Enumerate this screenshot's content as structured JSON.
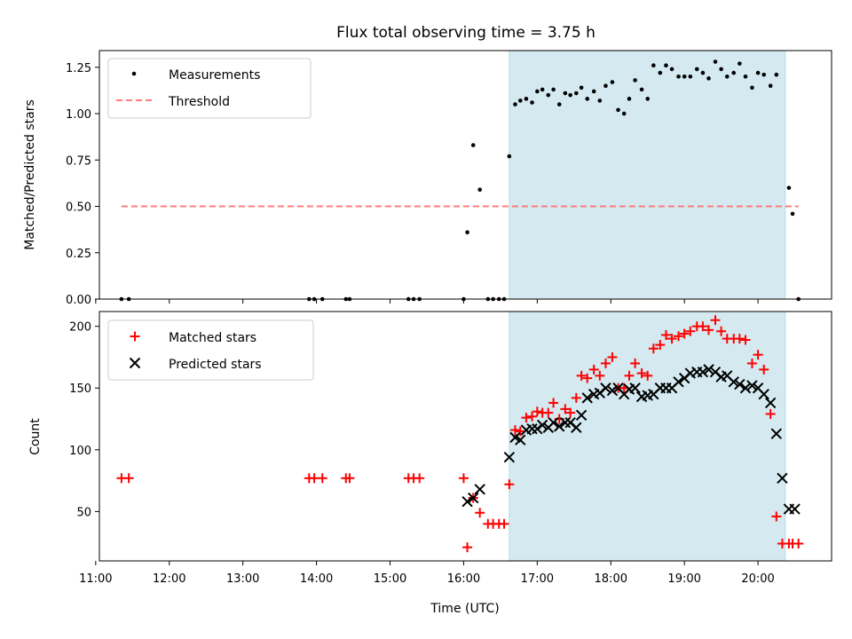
{
  "colors": {
    "observing_span": "#d4eaf0",
    "observing_span_edge": "#b9dbe4",
    "measurements": "#000000",
    "threshold": "#ff7b7b",
    "matched": "#ff0000",
    "predicted": "#000000"
  },
  "chart_data": [
    {
      "type": "scatter",
      "title": "Flux total observing time = 3.75 h",
      "xlabel": "",
      "ylabel": "Matched/Predicted stars",
      "xlim": [
        11.05,
        21.0
      ],
      "ylim": [
        0.0,
        1.34
      ],
      "yticks": [
        0.0,
        0.25,
        0.5,
        0.75,
        1.0,
        1.25
      ],
      "ytick_labels": [
        "0.00",
        "0.25",
        "0.50",
        "0.75",
        "1.00",
        "1.25"
      ],
      "xticks": [
        11,
        12,
        13,
        14,
        15,
        16,
        17,
        18,
        19,
        20
      ],
      "observing_span": [
        16.62,
        20.37
      ],
      "legend": [
        "Measurements",
        "Threshold"
      ],
      "legend_position": "top-left",
      "threshold": {
        "name": "Threshold",
        "y": 0.5,
        "x_range": [
          11.35,
          20.55
        ]
      },
      "series": [
        {
          "name": "Measurements",
          "x": [
            11.35,
            11.45,
            13.9,
            13.97,
            14.08,
            14.4,
            14.45,
            15.25,
            15.32,
            15.4,
            16.0,
            16.05,
            16.13,
            16.22,
            16.33,
            16.4,
            16.48,
            16.55,
            16.62,
            16.7,
            16.77,
            16.85,
            16.93,
            17.0,
            17.07,
            17.15,
            17.22,
            17.3,
            17.38,
            17.45,
            17.53,
            17.6,
            17.68,
            17.77,
            17.85,
            17.93,
            18.02,
            18.1,
            18.18,
            18.25,
            18.33,
            18.42,
            18.5,
            18.58,
            18.67,
            18.75,
            18.83,
            18.92,
            19.0,
            19.08,
            19.17,
            19.25,
            19.33,
            19.42,
            19.5,
            19.58,
            19.67,
            19.75,
            19.83,
            19.92,
            20.0,
            20.08,
            20.17,
            20.25,
            20.42,
            20.47,
            20.55
          ],
          "y": [
            0.0,
            0.0,
            0.0,
            0.0,
            0.0,
            0.0,
            0.0,
            0.0,
            0.0,
            0.0,
            0.0,
            0.36,
            0.83,
            0.59,
            0.0,
            0.0,
            0.0,
            0.0,
            0.77,
            1.05,
            1.07,
            1.08,
            1.06,
            1.12,
            1.13,
            1.1,
            1.13,
            1.05,
            1.11,
            1.1,
            1.11,
            1.14,
            1.08,
            1.12,
            1.07,
            1.15,
            1.17,
            1.02,
            1.0,
            1.08,
            1.18,
            1.13,
            1.08,
            1.26,
            1.22,
            1.26,
            1.24,
            1.2,
            1.2,
            1.2,
            1.24,
            1.22,
            1.19,
            1.28,
            1.24,
            1.2,
            1.22,
            1.27,
            1.2,
            1.14,
            1.22,
            1.21,
            1.15,
            1.21,
            0.6,
            0.46,
            0.0
          ]
        }
      ]
    },
    {
      "type": "scatter",
      "title": "",
      "xlabel": "Time (UTC)",
      "ylabel": "Count",
      "xlim": [
        11.05,
        21.0
      ],
      "ylim": [
        10,
        212
      ],
      "yticks": [
        50,
        100,
        150,
        200
      ],
      "xticks": [
        11,
        12,
        13,
        14,
        15,
        16,
        17,
        18,
        19,
        20
      ],
      "xtick_labels": [
        "11:00",
        "12:00",
        "13:00",
        "14:00",
        "15:00",
        "16:00",
        "17:00",
        "18:00",
        "19:00",
        "20:00"
      ],
      "observing_span": [
        16.62,
        20.37
      ],
      "legend": [
        "Matched stars",
        "Predicted stars"
      ],
      "legend_position": "top-left",
      "series": [
        {
          "name": "Matched stars",
          "marker": "plus",
          "x": [
            11.35,
            11.45,
            13.9,
            13.97,
            14.08,
            14.4,
            14.45,
            15.25,
            15.32,
            15.4,
            16.0,
            16.05,
            16.13,
            16.22,
            16.33,
            16.4,
            16.48,
            16.55,
            16.62,
            16.7,
            16.77,
            16.85,
            16.93,
            17.0,
            17.07,
            17.15,
            17.22,
            17.3,
            17.38,
            17.45,
            17.53,
            17.6,
            17.68,
            17.77,
            17.85,
            17.93,
            18.02,
            18.1,
            18.18,
            18.25,
            18.33,
            18.42,
            18.5,
            18.58,
            18.67,
            18.75,
            18.83,
            18.92,
            19.0,
            19.08,
            19.17,
            19.25,
            19.33,
            19.42,
            19.5,
            19.58,
            19.67,
            19.75,
            19.83,
            19.92,
            20.0,
            20.08,
            20.17,
            20.25,
            20.33,
            20.42,
            20.47,
            20.55
          ],
          "y": [
            77,
            77,
            77,
            77,
            77,
            77,
            77,
            77,
            77,
            77,
            77,
            21,
            61,
            49,
            40,
            40,
            40,
            40,
            72,
            116,
            115,
            126,
            127,
            131,
            130,
            130,
            138,
            125,
            133,
            130,
            142,
            160,
            158,
            165,
            160,
            170,
            175,
            150,
            150,
            160,
            170,
            162,
            160,
            182,
            185,
            193,
            190,
            192,
            194,
            196,
            200,
            200,
            197,
            205,
            196,
            190,
            190,
            190,
            189,
            170,
            177,
            165,
            129,
            46,
            24,
            24,
            24,
            24
          ]
        },
        {
          "name": "Predicted stars",
          "marker": "x",
          "x": [
            16.05,
            16.13,
            16.22,
            16.62,
            16.7,
            16.77,
            16.85,
            16.93,
            17.0,
            17.07,
            17.15,
            17.22,
            17.3,
            17.38,
            17.45,
            17.53,
            17.6,
            17.68,
            17.77,
            17.85,
            17.93,
            18.02,
            18.1,
            18.18,
            18.25,
            18.33,
            18.42,
            18.5,
            18.58,
            18.67,
            18.75,
            18.83,
            18.92,
            19.0,
            19.08,
            19.17,
            19.25,
            19.33,
            19.42,
            19.5,
            19.58,
            19.67,
            19.75,
            19.83,
            19.92,
            20.0,
            20.08,
            20.17,
            20.25,
            20.33,
            20.42,
            20.5
          ],
          "y": [
            58,
            61,
            68,
            94,
            110,
            108,
            116,
            117,
            117,
            120,
            118,
            122,
            119,
            122,
            122,
            118,
            128,
            142,
            145,
            146,
            150,
            148,
            150,
            145,
            149,
            150,
            143,
            144,
            145,
            150,
            150,
            150,
            155,
            158,
            162,
            163,
            163,
            165,
            163,
            159,
            160,
            155,
            153,
            150,
            152,
            150,
            145,
            138,
            113,
            77,
            52,
            52
          ]
        }
      ]
    }
  ]
}
